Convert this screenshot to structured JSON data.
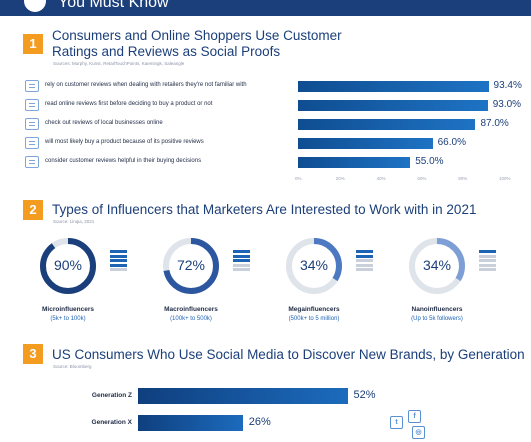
{
  "header": {
    "title": "You Must Know"
  },
  "section1": {
    "number": "1",
    "title_line1": "Consumers and Online Shoppers Use Customer",
    "title_line2": "Ratings and Reviews as Social Proofs",
    "source": "Sources: Murphy, Kunst, RetailTouchPoints, Kaemingk, Saleangle",
    "icons": [
      "person-chat-icon",
      "review-card-icon",
      "location-pin-icon",
      "rating-bubbles-icon",
      "review-list-icon"
    ],
    "chart_data": {
      "type": "bar",
      "orientation": "horizontal",
      "categories": [
        "rely on customer reviews when dealing with retailers they're not familiar with",
        "read online reviews first before deciding to buy a product or not",
        "check out reviews of local businesses online",
        "will most likely buy a product because of its positive reviews",
        "consider customer reviews helpful in their buying decisions"
      ],
      "values": [
        93.4,
        93.0,
        87.0,
        66.0,
        55.0
      ],
      "value_labels": [
        "93.4%",
        "93.0%",
        "87.0%",
        "66.0%",
        "55.0%"
      ],
      "xlim": [
        0,
        100
      ],
      "ticks": [
        "0%",
        "20%",
        "40%",
        "60%",
        "80%",
        "100%"
      ]
    }
  },
  "section2": {
    "number": "2",
    "title": "Types of Influencers that Marketers Are Interested to Work with in 2021",
    "source": "Source: Linqia, 2021",
    "chart_data": {
      "type": "pie",
      "style": "donut",
      "items": [
        {
          "name": "Microinfluencers",
          "range": "(5k+ to 100k)",
          "value": 90,
          "label": "90%",
          "color": "#1b3f7a"
        },
        {
          "name": "Macroinfluencers",
          "range": "(100k+ to 500k)",
          "value": 72,
          "label": "72%",
          "color": "#2c57a0"
        },
        {
          "name": "Megainfluencers",
          "range": "(500k+ to 5 million)",
          "value": 34,
          "label": "34%",
          "color": "#4d79c2"
        },
        {
          "name": "Nanoinfluencers",
          "range": "(Up to 5k followers)",
          "value": 34,
          "label": "34%",
          "color": "#7d9fd6"
        }
      ],
      "track_color": "#dfe3ea"
    }
  },
  "section3": {
    "number": "3",
    "title": "US Consumers Who Use Social Media to Discover New Brands, by Generation",
    "source": "Source: Bloomberg",
    "icons": [
      "twitter-icon",
      "facebook-icon",
      "instagram-icon"
    ],
    "chart_data": {
      "type": "bar",
      "orientation": "horizontal",
      "categories": [
        "Generation Z",
        "Generation X"
      ],
      "values": [
        52,
        26
      ],
      "value_labels": [
        "52%",
        "26%"
      ],
      "xlim": [
        0,
        100
      ]
    }
  }
}
